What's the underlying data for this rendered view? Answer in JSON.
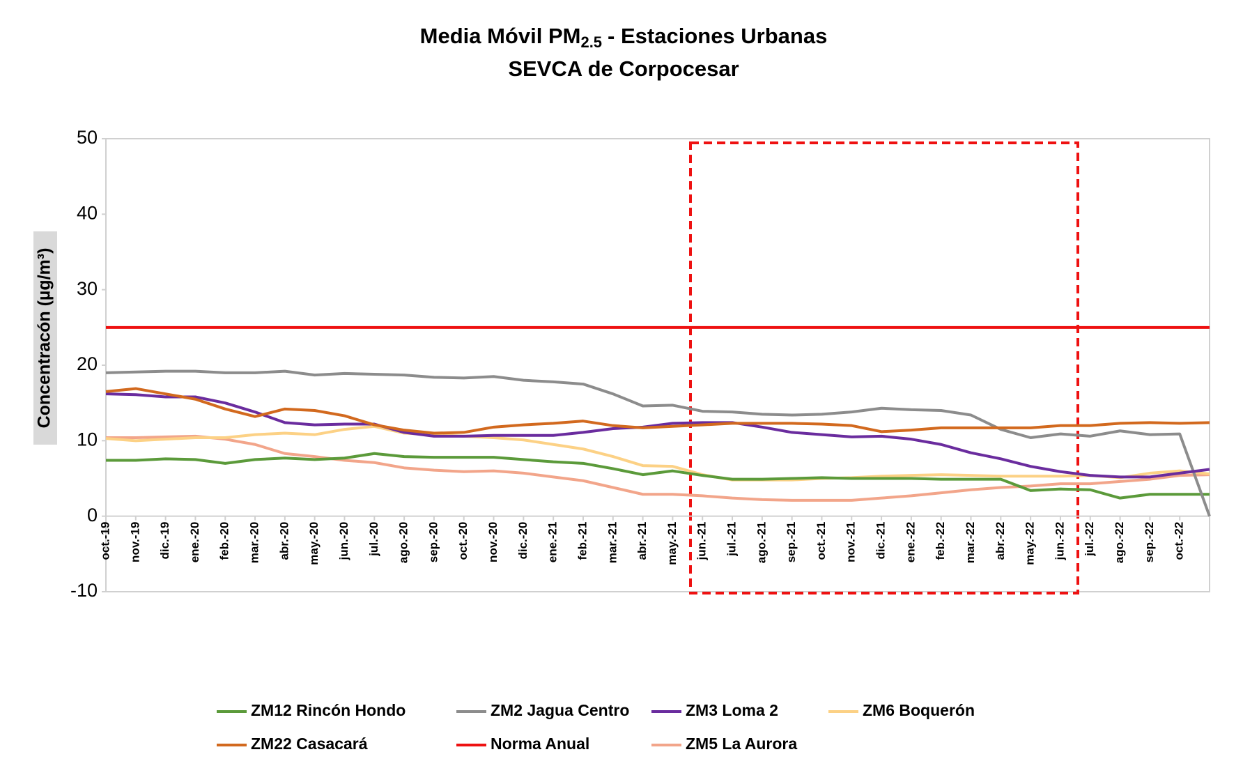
{
  "chart_data": {
    "type": "line",
    "title": [
      "Media Móvil PM",
      "2.5",
      "- Estaciones Urbanas"
    ],
    "subtitle": "SEVCA de Corpocesar",
    "y_label": "Concentracón (µg/m³)",
    "categories": [
      "oct.-19",
      "nov.-19",
      "dic.-19",
      "ene.-20",
      "feb.-20",
      "mar.-20",
      "abr.-20",
      "may.-20",
      "jun.-20",
      "jul.-20",
      "ago.-20",
      "sep.-20",
      "oct.-20",
      "nov.-20",
      "dic.-20",
      "ene.-21",
      "feb.-21",
      "mar.-21",
      "abr.-21",
      "may.-21",
      "jun.-21",
      "jul.-21",
      "ago.-21",
      "sep.-21",
      "oct.-21",
      "nov.-21",
      "dic.-21",
      "ene.-22",
      "feb.-22",
      "mar.-22",
      "abr.-22",
      "may.-22",
      "jun.-22",
      "jul.-22",
      "ago.-22",
      "sep.-22",
      "oct.-22",
      null
    ],
    "ylim": [
      -10,
      50
    ],
    "yticks": [
      -10,
      0,
      10,
      20,
      30,
      40,
      50
    ],
    "grid": false,
    "series": [
      {
        "name": "ZM12 Rincón Hondo",
        "color": "#5b9a3a",
        "values": [
          7.4,
          7.4,
          7.6,
          7.5,
          7.0,
          7.5,
          7.7,
          7.5,
          7.7,
          8.3,
          7.9,
          7.8,
          7.8,
          7.8,
          7.5,
          7.2,
          7.0,
          6.3,
          5.5,
          6.0,
          5.4,
          4.9,
          4.9,
          5.0,
          5.1,
          5.0,
          5.0,
          5.0,
          4.9,
          4.9,
          4.9,
          3.4,
          3.6,
          3.5,
          2.4,
          2.9,
          2.9,
          2.9
        ]
      },
      {
        "name": "ZM2 Jagua Centro",
        "color": "#8c8c8c",
        "values": [
          19.0,
          19.1,
          19.2,
          19.2,
          19.0,
          19.0,
          19.2,
          18.7,
          18.9,
          18.8,
          18.7,
          18.4,
          18.3,
          18.5,
          18.0,
          17.8,
          17.5,
          16.2,
          14.6,
          14.7,
          13.9,
          13.8,
          13.5,
          13.4,
          13.5,
          13.8,
          14.3,
          14.1,
          14.0,
          13.4,
          11.5,
          10.4,
          10.9,
          10.6,
          11.3,
          10.8,
          10.9,
          0
        ]
      },
      {
        "name": "ZM3 Loma 2",
        "color": "#6a2c9e",
        "values": [
          16.2,
          16.1,
          15.8,
          15.8,
          15.0,
          13.8,
          12.4,
          12.1,
          12.2,
          12.2,
          11.1,
          10.6,
          10.6,
          10.7,
          10.7,
          10.7,
          11.1,
          11.6,
          11.8,
          12.3,
          12.4,
          12.4,
          11.8,
          11.1,
          10.8,
          10.5,
          10.6,
          10.2,
          9.5,
          8.4,
          7.6,
          6.6,
          5.9,
          5.4,
          5.2,
          5.2,
          5.7,
          6.2
        ]
      },
      {
        "name": "ZM6 Boquerón",
        "color": "#fcd185",
        "values": [
          10.3,
          10.0,
          10.2,
          10.4,
          10.4,
          10.8,
          11.0,
          10.8,
          11.5,
          11.9,
          11.0,
          10.8,
          10.6,
          10.4,
          10.1,
          9.5,
          8.9,
          7.9,
          6.7,
          6.6,
          5.5,
          4.8,
          4.8,
          4.8,
          5.0,
          5.1,
          5.3,
          5.4,
          5.5,
          5.4,
          5.3,
          5.3,
          5.3,
          5.4,
          5.1,
          5.7,
          6.0,
          5.6
        ]
      },
      {
        "name": "ZM22 Casacará",
        "color": "#d2691e",
        "values": [
          16.5,
          16.9,
          16.2,
          15.5,
          14.2,
          13.2,
          14.2,
          14.0,
          13.3,
          12.1,
          11.4,
          11.0,
          11.1,
          11.8,
          12.1,
          12.3,
          12.6,
          12.0,
          11.7,
          11.9,
          12.1,
          12.3,
          12.3,
          12.3,
          12.2,
          12.0,
          11.2,
          11.4,
          11.7,
          11.7,
          11.7,
          11.7,
          12.0,
          12.0,
          12.3,
          12.4,
          12.3,
          12.4
        ]
      },
      {
        "name": "Norma Anual",
        "color": "#ee1111",
        "values": [
          25,
          25,
          25,
          25,
          25,
          25,
          25,
          25,
          25,
          25,
          25,
          25,
          25,
          25,
          25,
          25,
          25,
          25,
          25,
          25,
          25,
          25,
          25,
          25,
          25,
          25,
          25,
          25,
          25,
          25,
          25,
          25,
          25,
          25,
          25,
          25,
          25,
          25
        ]
      },
      {
        "name": "ZM5 La Aurora",
        "color": "#f2a58a",
        "values": [
          10.4,
          10.4,
          10.5,
          10.6,
          10.2,
          9.5,
          8.3,
          7.9,
          7.4,
          7.1,
          6.4,
          6.1,
          5.9,
          6.0,
          5.7,
          5.2,
          4.7,
          3.8,
          2.9,
          2.9,
          2.7,
          2.4,
          2.2,
          2.1,
          2.1,
          2.1,
          2.4,
          2.7,
          3.1,
          3.5,
          3.8,
          4.0,
          4.3,
          4.3,
          4.6,
          4.9,
          5.4,
          5.5
        ]
      }
    ]
  }
}
